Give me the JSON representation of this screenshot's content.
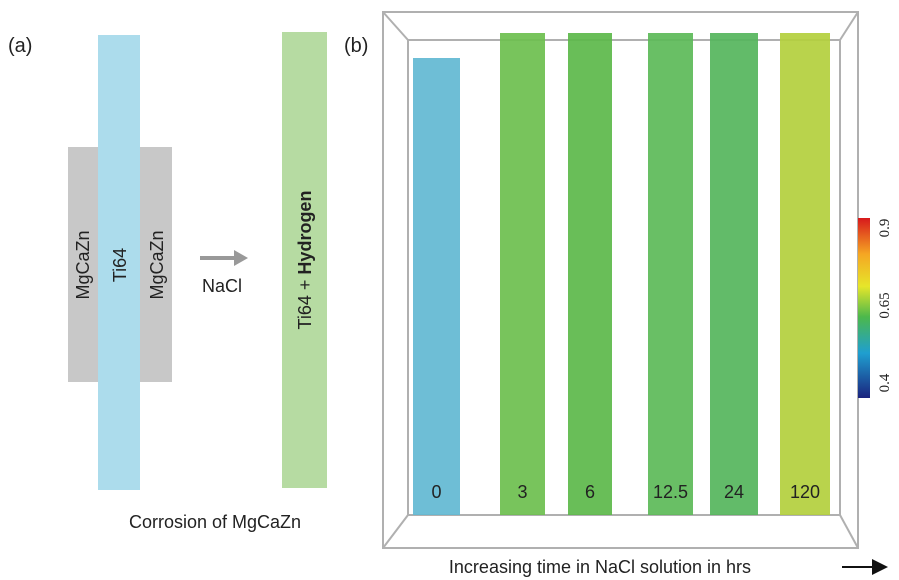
{
  "panel_a": {
    "label": "(a)",
    "left_layer": "MgCaZn",
    "center_layer": "Ti64",
    "right_layer": "MgCaZn",
    "arrow_label": "NaCl",
    "product": "Ti64 +",
    "product_bold": "Hydrogen",
    "caption": "Corrosion of MgCaZn"
  },
  "panel_b": {
    "label": "(b)",
    "samples": [
      "0",
      "3",
      "6",
      "12.5",
      "24",
      "120"
    ],
    "colorbar_ticks": [
      "0.9",
      "0.65",
      "0.4"
    ],
    "caption": "Increasing time in NaCl solution in hrs"
  }
}
